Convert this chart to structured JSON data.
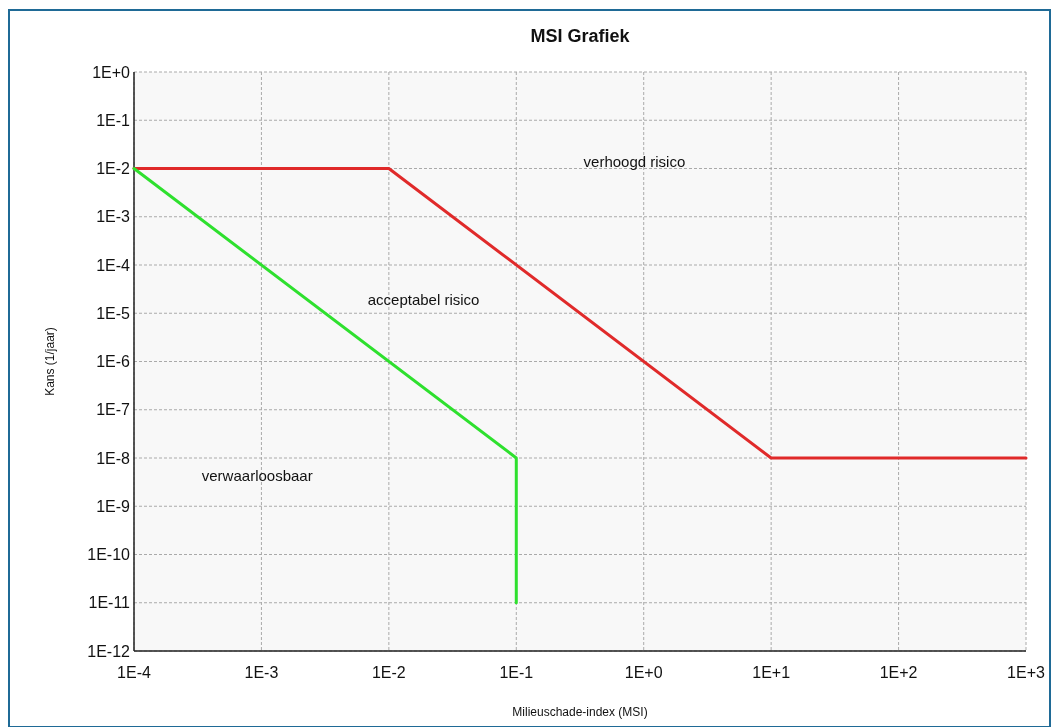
{
  "chart_data": {
    "type": "line",
    "title": "MSI Grafiek",
    "xlabel": "Milieuschade-index (MSI)",
    "ylabel": "Kans (1/jaar)",
    "log": "xy",
    "grid": true,
    "line_style": "solid",
    "xlim": [
      0.0001,
      1000
    ],
    "ylim": [
      1e-12,
      1
    ],
    "xticks": [
      {
        "value": 0.0001,
        "label": "1E-4"
      },
      {
        "value": 0.001,
        "label": "1E-3"
      },
      {
        "value": 0.01,
        "label": "1E-2"
      },
      {
        "value": 0.1,
        "label": "1E-1"
      },
      {
        "value": 1,
        "label": "1E+0"
      },
      {
        "value": 10,
        "label": "1E+1"
      },
      {
        "value": 100,
        "label": "1E+2"
      },
      {
        "value": 1000,
        "label": "1E+3"
      }
    ],
    "yticks": [
      {
        "value": 1,
        "label": "1E+0"
      },
      {
        "value": 0.1,
        "label": "1E-1"
      },
      {
        "value": 0.01,
        "label": "1E-2"
      },
      {
        "value": 0.001,
        "label": "1E-3"
      },
      {
        "value": 0.0001,
        "label": "1E-4"
      },
      {
        "value": 1e-05,
        "label": "1E-5"
      },
      {
        "value": 1e-06,
        "label": "1E-6"
      },
      {
        "value": 1e-07,
        "label": "1E-7"
      },
      {
        "value": 1e-08,
        "label": "1E-8"
      },
      {
        "value": 1e-09,
        "label": "1E-9"
      },
      {
        "value": 1e-10,
        "label": "1E-10"
      },
      {
        "value": 1e-11,
        "label": "1E-11"
      },
      {
        "value": 1e-12,
        "label": "1E-12"
      }
    ],
    "series": [
      {
        "color": "#e02a2a",
        "x": [
          0.0001,
          0.01,
          10,
          1000
        ],
        "values": [
          0.01,
          0.01,
          1e-08,
          1e-08
        ]
      },
      {
        "color": "#2ee02e",
        "x": [
          0.0001,
          0.1,
          0.1
        ],
        "values": [
          0.01,
          1e-08,
          1e-11
        ]
      }
    ],
    "annotations": [
      "verhoogd risico",
      "acceptabel risico",
      "verwaarloosbaar"
    ]
  }
}
